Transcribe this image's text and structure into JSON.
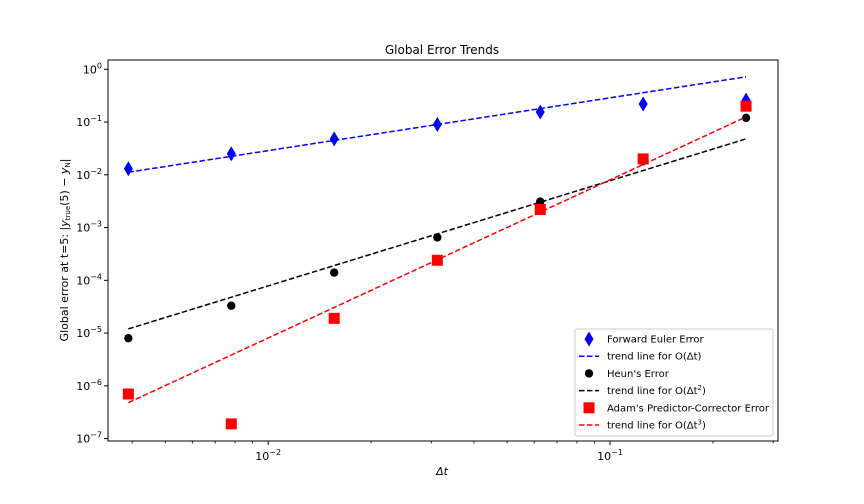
{
  "chart_data": {
    "type": "scatter",
    "title": "Global Error Trends",
    "xlabel": "Δt",
    "ylabel": "Global error at t=5: |y_true(5) − y_N|",
    "xscale": "log",
    "yscale": "log",
    "xlim": [
      0.0034,
      0.31
    ],
    "ylim": [
      9e-08,
      1.5
    ],
    "x_ticks": [
      {
        "value": 0.01,
        "base": "10",
        "exp": "−2"
      },
      {
        "value": 0.1,
        "base": "10",
        "exp": "−1"
      }
    ],
    "y_ticks": [
      {
        "value": 1e-07,
        "base": "10",
        "exp": "−7"
      },
      {
        "value": 1e-06,
        "base": "10",
        "exp": "−6"
      },
      {
        "value": 1e-05,
        "base": "10",
        "exp": "−5"
      },
      {
        "value": 0.0001,
        "base": "10",
        "exp": "−4"
      },
      {
        "value": 0.001,
        "base": "10",
        "exp": "−3"
      },
      {
        "value": 0.01,
        "base": "10",
        "exp": "−2"
      },
      {
        "value": 0.1,
        "base": "10",
        "exp": "−1"
      },
      {
        "value": 1,
        "base": "10",
        "exp": "0"
      }
    ],
    "grid": false,
    "legend_position": "lower-right",
    "series": [
      {
        "name": "Forward Euler Error",
        "kind": "points",
        "marker": "diamond",
        "color": "#0000ff",
        "x": [
          0.0039,
          0.0078,
          0.0156,
          0.03125,
          0.0625,
          0.125,
          0.25
        ],
        "y": [
          0.013,
          0.025,
          0.048,
          0.09,
          0.155,
          0.22,
          0.26
        ]
      },
      {
        "name": "trend line for O(Δt)",
        "legend_main": "trend line for O(Δt",
        "legend_sup": "",
        "legend_tail": ")",
        "kind": "line",
        "color": "#0000ff",
        "x": [
          0.0039,
          0.25
        ],
        "y": [
          0.0112,
          0.72
        ]
      },
      {
        "name": "Heun's Error",
        "kind": "points",
        "marker": "circle",
        "color": "#000000",
        "x": [
          0.0039,
          0.0078,
          0.0156,
          0.03125,
          0.0625,
          0.125,
          0.25
        ],
        "y": [
          8e-06,
          3.3e-05,
          0.00014,
          0.00065,
          0.0031,
          0.018,
          0.12
        ]
      },
      {
        "name": "trend line for O(Δt²)",
        "legend_main": "trend line for O(Δt",
        "legend_sup": "2",
        "legend_tail": ")",
        "kind": "line",
        "color": "#000000",
        "x": [
          0.0039,
          0.25
        ],
        "y": [
          1.2e-05,
          0.048
        ]
      },
      {
        "name": "Adam's Predictor-Corrector Error",
        "kind": "points",
        "marker": "square",
        "color": "#ff0000",
        "x": [
          0.0039,
          0.0078,
          0.0156,
          0.03125,
          0.0625,
          0.125,
          0.25
        ],
        "y": [
          7e-07,
          1.9e-07,
          1.9e-05,
          0.00024,
          0.0022,
          0.02,
          0.2
        ]
      },
      {
        "name": "trend line for O(Δt³)",
        "legend_main": "trend line for O(Δt",
        "legend_sup": "3",
        "legend_tail": ")",
        "kind": "line",
        "color": "#ff0000",
        "x": [
          0.0039,
          0.25
        ],
        "y": [
          4.8e-07,
          0.125
        ]
      }
    ]
  }
}
